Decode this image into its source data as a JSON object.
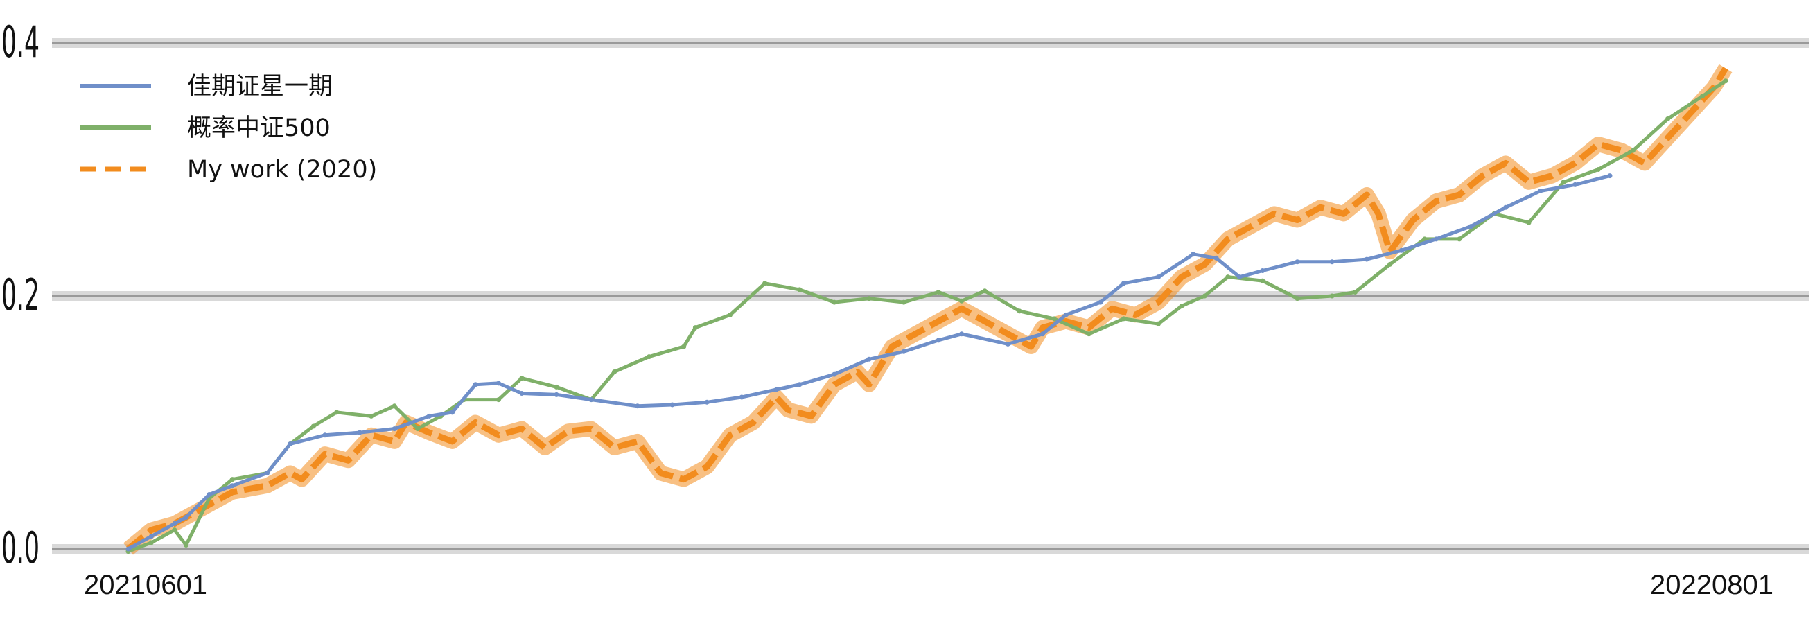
{
  "chart_data": {
    "type": "line",
    "title": "",
    "xlabel": "",
    "ylabel": "",
    "x_range": [
      "20210601",
      "20220801"
    ],
    "x_tick_labels": [
      "20210601",
      "20220801"
    ],
    "ylim": [
      0.0,
      0.4
    ],
    "y_tick_labels": [
      "0.0",
      "0.2",
      "0.4"
    ],
    "grid": "horizontal",
    "legend_placement": "top-left",
    "series": [
      {
        "name": "佳期证星一期",
        "color": "#6f8fc9",
        "style": "solid",
        "points": [
          [
            0.0,
            0.0
          ],
          [
            0.02,
            0.01
          ],
          [
            0.04,
            0.02
          ],
          [
            0.05,
            0.025
          ],
          [
            0.07,
            0.043
          ],
          [
            0.09,
            0.05
          ],
          [
            0.12,
            0.06
          ],
          [
            0.14,
            0.083
          ],
          [
            0.17,
            0.09
          ],
          [
            0.2,
            0.092
          ],
          [
            0.23,
            0.095
          ],
          [
            0.26,
            0.105
          ],
          [
            0.28,
            0.108
          ],
          [
            0.3,
            0.13
          ],
          [
            0.32,
            0.131
          ],
          [
            0.34,
            0.123
          ],
          [
            0.37,
            0.122
          ],
          [
            0.4,
            0.118
          ],
          [
            0.44,
            0.113
          ],
          [
            0.47,
            0.114
          ],
          [
            0.5,
            0.116
          ],
          [
            0.53,
            0.12
          ],
          [
            0.56,
            0.126
          ],
          [
            0.58,
            0.13
          ],
          [
            0.61,
            0.138
          ],
          [
            0.64,
            0.15
          ],
          [
            0.67,
            0.156
          ],
          [
            0.7,
            0.165
          ],
          [
            0.72,
            0.17
          ],
          [
            0.76,
            0.162
          ],
          [
            0.79,
            0.17
          ],
          [
            0.81,
            0.185
          ],
          [
            0.84,
            0.195
          ],
          [
            0.86,
            0.21
          ],
          [
            0.89,
            0.215
          ],
          [
            0.92,
            0.233
          ],
          [
            0.94,
            0.23
          ],
          [
            0.96,
            0.215
          ],
          [
            0.98,
            0.22
          ],
          [
            1.01,
            0.227
          ],
          [
            1.04,
            0.227
          ],
          [
            1.07,
            0.229
          ],
          [
            1.1,
            0.236
          ],
          [
            1.13,
            0.245
          ],
          [
            1.16,
            0.255
          ],
          [
            1.19,
            0.27
          ],
          [
            1.22,
            0.283
          ],
          [
            1.25,
            0.288
          ],
          [
            1.28,
            0.295
          ]
        ]
      },
      {
        "name": "概率中证500",
        "color": "#7fb069",
        "style": "solid",
        "points": [
          [
            0.0,
            -0.002
          ],
          [
            0.02,
            0.005
          ],
          [
            0.04,
            0.015
          ],
          [
            0.05,
            0.003
          ],
          [
            0.07,
            0.04
          ],
          [
            0.09,
            0.055
          ],
          [
            0.12,
            0.06
          ],
          [
            0.14,
            0.083
          ],
          [
            0.16,
            0.097
          ],
          [
            0.18,
            0.108
          ],
          [
            0.21,
            0.105
          ],
          [
            0.23,
            0.113
          ],
          [
            0.25,
            0.095
          ],
          [
            0.27,
            0.105
          ],
          [
            0.29,
            0.118
          ],
          [
            0.32,
            0.118
          ],
          [
            0.34,
            0.135
          ],
          [
            0.37,
            0.128
          ],
          [
            0.4,
            0.118
          ],
          [
            0.42,
            0.14
          ],
          [
            0.45,
            0.152
          ],
          [
            0.48,
            0.16
          ],
          [
            0.49,
            0.175
          ],
          [
            0.52,
            0.185
          ],
          [
            0.55,
            0.21
          ],
          [
            0.58,
            0.205
          ],
          [
            0.61,
            0.195
          ],
          [
            0.64,
            0.198
          ],
          [
            0.67,
            0.195
          ],
          [
            0.7,
            0.203
          ],
          [
            0.72,
            0.196
          ],
          [
            0.74,
            0.204
          ],
          [
            0.77,
            0.188
          ],
          [
            0.8,
            0.182
          ],
          [
            0.83,
            0.17
          ],
          [
            0.86,
            0.182
          ],
          [
            0.89,
            0.178
          ],
          [
            0.91,
            0.192
          ],
          [
            0.93,
            0.2
          ],
          [
            0.95,
            0.215
          ],
          [
            0.98,
            0.212
          ],
          [
            1.01,
            0.198
          ],
          [
            1.04,
            0.2
          ],
          [
            1.06,
            0.203
          ],
          [
            1.09,
            0.225
          ],
          [
            1.12,
            0.245
          ],
          [
            1.15,
            0.245
          ],
          [
            1.18,
            0.265
          ],
          [
            1.21,
            0.258
          ],
          [
            1.24,
            0.29
          ],
          [
            1.27,
            0.3
          ],
          [
            1.3,
            0.315
          ],
          [
            1.33,
            0.34
          ],
          [
            1.36,
            0.358
          ],
          [
            1.38,
            0.37
          ]
        ]
      },
      {
        "name": "My work (2020)",
        "color": "#f28c1e",
        "style": "dashed",
        "points": [
          [
            0.0,
            0.0
          ],
          [
            0.02,
            0.015
          ],
          [
            0.04,
            0.02
          ],
          [
            0.05,
            0.025
          ],
          [
            0.07,
            0.035
          ],
          [
            0.09,
            0.045
          ],
          [
            0.12,
            0.05
          ],
          [
            0.14,
            0.06
          ],
          [
            0.15,
            0.055
          ],
          [
            0.17,
            0.075
          ],
          [
            0.19,
            0.07
          ],
          [
            0.21,
            0.09
          ],
          [
            0.23,
            0.085
          ],
          [
            0.24,
            0.1
          ],
          [
            0.26,
            0.092
          ],
          [
            0.28,
            0.085
          ],
          [
            0.3,
            0.1
          ],
          [
            0.32,
            0.09
          ],
          [
            0.34,
            0.095
          ],
          [
            0.36,
            0.08
          ],
          [
            0.38,
            0.093
          ],
          [
            0.4,
            0.095
          ],
          [
            0.42,
            0.08
          ],
          [
            0.44,
            0.085
          ],
          [
            0.46,
            0.06
          ],
          [
            0.48,
            0.055
          ],
          [
            0.5,
            0.065
          ],
          [
            0.52,
            0.09
          ],
          [
            0.54,
            0.1
          ],
          [
            0.56,
            0.12
          ],
          [
            0.57,
            0.11
          ],
          [
            0.59,
            0.105
          ],
          [
            0.61,
            0.13
          ],
          [
            0.63,
            0.14
          ],
          [
            0.64,
            0.13
          ],
          [
            0.66,
            0.16
          ],
          [
            0.68,
            0.17
          ],
          [
            0.7,
            0.18
          ],
          [
            0.72,
            0.19
          ],
          [
            0.74,
            0.18
          ],
          [
            0.76,
            0.17
          ],
          [
            0.78,
            0.16
          ],
          [
            0.79,
            0.175
          ],
          [
            0.81,
            0.18
          ],
          [
            0.83,
            0.175
          ],
          [
            0.85,
            0.19
          ],
          [
            0.87,
            0.185
          ],
          [
            0.89,
            0.195
          ],
          [
            0.91,
            0.215
          ],
          [
            0.93,
            0.225
          ],
          [
            0.95,
            0.245
          ],
          [
            0.97,
            0.255
          ],
          [
            0.99,
            0.265
          ],
          [
            1.01,
            0.26
          ],
          [
            1.03,
            0.27
          ],
          [
            1.05,
            0.265
          ],
          [
            1.07,
            0.28
          ],
          [
            1.08,
            0.265
          ],
          [
            1.09,
            0.235
          ],
          [
            1.11,
            0.26
          ],
          [
            1.13,
            0.275
          ],
          [
            1.15,
            0.28
          ],
          [
            1.17,
            0.295
          ],
          [
            1.19,
            0.305
          ],
          [
            1.21,
            0.29
          ],
          [
            1.23,
            0.295
          ],
          [
            1.25,
            0.305
          ],
          [
            1.27,
            0.32
          ],
          [
            1.29,
            0.315
          ],
          [
            1.31,
            0.305
          ],
          [
            1.33,
            0.325
          ],
          [
            1.35,
            0.345
          ],
          [
            1.37,
            0.365
          ],
          [
            1.38,
            0.38
          ]
        ]
      }
    ]
  }
}
